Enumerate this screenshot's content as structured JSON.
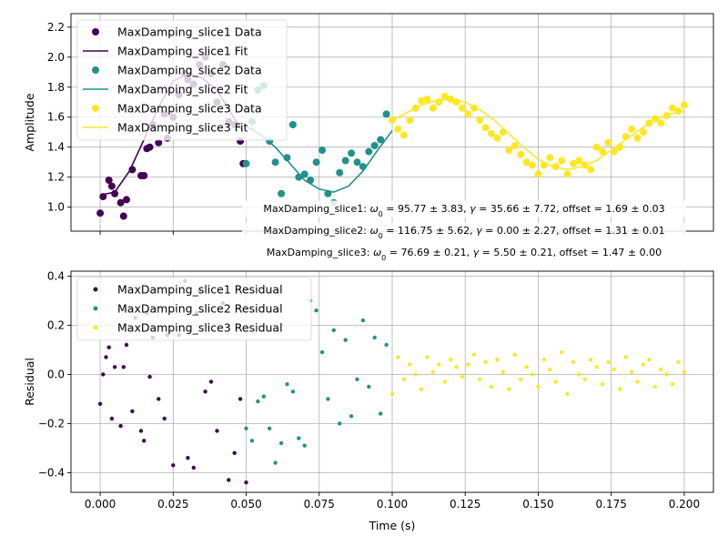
{
  "chart_data": [
    {
      "type": "scatter",
      "title": "",
      "xlabel": "",
      "ylabel": "Amplitude",
      "xlim": [
        -0.01,
        0.21
      ],
      "ylim": [
        0.84,
        2.29
      ],
      "xticks": [
        0.0,
        0.025,
        0.05,
        0.075,
        0.1,
        0.125,
        0.15,
        0.175,
        0.2
      ],
      "yticks": [
        1.0,
        1.2,
        1.4,
        1.6,
        1.8,
        2.0,
        2.2
      ],
      "ytick_labels": [
        "1.0",
        "1.2",
        "1.4",
        "1.6",
        "1.8",
        "2.0",
        "2.2"
      ],
      "grid": true,
      "legend_position": "top-left",
      "legend": [
        {
          "label": "MaxDamping_slice1 Data",
          "kind": "marker",
          "color": "#440154"
        },
        {
          "label": "MaxDamping_slice1 Fit",
          "kind": "line",
          "color": "#440154"
        },
        {
          "label": "MaxDamping_slice2 Data",
          "kind": "marker",
          "color": "#21918c"
        },
        {
          "label": "MaxDamping_slice2 Fit",
          "kind": "line",
          "color": "#21918c"
        },
        {
          "label": "MaxDamping_slice3 Data",
          "kind": "marker",
          "color": "#fde725"
        },
        {
          "label": "MaxDamping_slice3 Fit",
          "kind": "line",
          "color": "#fde725"
        }
      ],
      "annotations": [
        "MaxDamping_slice1: $\\omega_0 = 95.77 \\pm 3.83$, $\\gamma = 35.66 \\pm 7.72$, offset$ = 1.69 \\pm 0.03$",
        "MaxDamping_slice2: $\\omega_0 = 116.75 \\pm 5.62$, $\\gamma = 0.00 \\pm 2.27$, offset$ = 1.31 \\pm 0.01$",
        "MaxDamping_slice3: $\\omega_0 = 76.69 \\pm 0.21$, $\\gamma = 5.50 \\pm 0.21$, offset$ = 1.47 \\pm 0.00$"
      ],
      "annotations_display": [
        [
          "MaxDamping_slice1: ",
          "ω",
          "0",
          " = 95.77 ± 3.83, ",
          "γ",
          "",
          " = 35.66 ± 7.72, offset = 1.69 ± 0.03"
        ],
        [
          "MaxDamping_slice2: ",
          "ω",
          "0",
          " = 116.75 ± 5.62, ",
          "γ",
          "",
          " = 0.00 ± 2.27, offset = 1.31 ± 0.01"
        ],
        [
          "MaxDamping_slice3: ",
          "ω",
          "0",
          " = 76.69 ± 0.21, ",
          "γ",
          "",
          " = 5.50 ± 0.21, offset = 1.47 ± 0.00"
        ]
      ],
      "series": [
        {
          "name": "MaxDamping_slice1 Data",
          "kind": "scatter",
          "color": "#440154",
          "x": [
            0.0,
            0.001,
            0.003,
            0.004,
            0.005,
            0.007,
            0.008,
            0.009,
            0.011,
            0.014,
            0.015,
            0.016,
            0.017,
            0.018,
            0.02,
            0.022,
            0.023,
            0.025,
            0.027,
            0.029,
            0.03,
            0.032,
            0.034,
            0.036,
            0.038,
            0.04,
            0.042,
            0.044,
            0.046,
            0.048,
            0.049
          ],
          "y": [
            0.96,
            1.07,
            1.18,
            1.14,
            1.09,
            1.03,
            0.94,
            1.05,
            1.25,
            1.21,
            1.21,
            1.39,
            1.4,
            1.55,
            1.43,
            1.62,
            1.46,
            1.6,
            1.75,
            1.89,
            1.85,
            1.82,
            1.95,
            2.0,
            1.89,
            1.7,
            1.95,
            1.57,
            1.55,
            1.44,
            1.29
          ]
        },
        {
          "name": "MaxDamping_slice1 Fit",
          "kind": "line",
          "color": "#440154",
          "x": [
            0.0,
            0.005,
            0.01,
            0.015,
            0.02,
            0.025,
            0.03,
            0.035,
            0.04,
            0.045,
            0.049
          ],
          "y": [
            1.08,
            1.1,
            1.24,
            1.45,
            1.67,
            1.84,
            1.89,
            1.86,
            1.78,
            1.62,
            1.5
          ]
        },
        {
          "name": "MaxDamping_slice2 Data",
          "kind": "scatter",
          "color": "#21918c",
          "x": [
            0.05,
            0.052,
            0.054,
            0.056,
            0.058,
            0.06,
            0.062,
            0.064,
            0.066,
            0.068,
            0.07,
            0.072,
            0.074,
            0.076,
            0.078,
            0.08,
            0.082,
            0.084,
            0.086,
            0.088,
            0.09,
            0.092,
            0.094,
            0.096,
            0.098
          ],
          "y": [
            1.29,
            1.57,
            1.78,
            1.81,
            1.44,
            1.3,
            1.09,
            1.33,
            1.55,
            1.2,
            1.22,
            1.18,
            1.3,
            1.38,
            1.09,
            1.03,
            1.23,
            1.31,
            1.36,
            1.3,
            1.27,
            1.37,
            1.41,
            1.45,
            1.62
          ]
        },
        {
          "name": "MaxDamping_slice2 Fit",
          "kind": "line",
          "color": "#21918c",
          "x": [
            0.05,
            0.055,
            0.06,
            0.065,
            0.07,
            0.075,
            0.08,
            0.085,
            0.09,
            0.095,
            0.1
          ],
          "y": [
            1.54,
            1.48,
            1.4,
            1.29,
            1.18,
            1.12,
            1.1,
            1.14,
            1.24,
            1.38,
            1.51
          ]
        },
        {
          "name": "MaxDamping_slice3 Data",
          "kind": "scatter",
          "color": "#fde725",
          "x": [
            0.1,
            0.102,
            0.104,
            0.106,
            0.108,
            0.11,
            0.112,
            0.114,
            0.116,
            0.118,
            0.12,
            0.122,
            0.124,
            0.126,
            0.128,
            0.13,
            0.132,
            0.134,
            0.136,
            0.138,
            0.14,
            0.142,
            0.144,
            0.146,
            0.148,
            0.15,
            0.152,
            0.154,
            0.156,
            0.158,
            0.16,
            0.162,
            0.164,
            0.166,
            0.168,
            0.17,
            0.172,
            0.174,
            0.176,
            0.178,
            0.18,
            0.182,
            0.184,
            0.186,
            0.188,
            0.19,
            0.192,
            0.194,
            0.196,
            0.198,
            0.2
          ],
          "y": [
            1.58,
            1.52,
            1.48,
            1.58,
            1.66,
            1.71,
            1.72,
            1.66,
            1.7,
            1.74,
            1.72,
            1.7,
            1.66,
            1.62,
            1.66,
            1.58,
            1.53,
            1.49,
            1.46,
            1.5,
            1.38,
            1.41,
            1.35,
            1.3,
            1.28,
            1.22,
            1.28,
            1.33,
            1.27,
            1.31,
            1.22,
            1.29,
            1.31,
            1.28,
            1.25,
            1.4,
            1.37,
            1.43,
            1.37,
            1.4,
            1.47,
            1.52,
            1.46,
            1.5,
            1.56,
            1.59,
            1.56,
            1.61,
            1.66,
            1.64,
            1.68
          ]
        },
        {
          "name": "MaxDamping_slice3 Fit",
          "kind": "line",
          "color": "#fde725",
          "x": [
            0.1,
            0.105,
            0.11,
            0.115,
            0.12,
            0.125,
            0.13,
            0.135,
            0.14,
            0.145,
            0.15,
            0.155,
            0.16,
            0.165,
            0.17,
            0.175,
            0.18,
            0.185,
            0.19,
            0.195,
            0.2
          ],
          "y": [
            1.58,
            1.63,
            1.68,
            1.71,
            1.72,
            1.7,
            1.65,
            1.58,
            1.49,
            1.4,
            1.32,
            1.27,
            1.25,
            1.27,
            1.31,
            1.38,
            1.45,
            1.52,
            1.58,
            1.62,
            1.64
          ]
        }
      ]
    },
    {
      "type": "scatter",
      "title": "",
      "xlabel": "Time (s)",
      "ylabel": "Residual",
      "xlim": [
        -0.01,
        0.21
      ],
      "ylim": [
        -0.48,
        0.42
      ],
      "xticks": [
        0.0,
        0.025,
        0.05,
        0.075,
        0.1,
        0.125,
        0.15,
        0.175,
        0.2
      ],
      "xtick_labels": [
        "0.000",
        "0.025",
        "0.050",
        "0.075",
        "0.100",
        "0.125",
        "0.150",
        "0.175",
        "0.200"
      ],
      "yticks": [
        -0.4,
        -0.2,
        0.0,
        0.2,
        0.4
      ],
      "ytick_labels": [
        "−0.4",
        "−0.2",
        "0.0",
        "0.2",
        "0.4"
      ],
      "grid": true,
      "legend_position": "top-left",
      "legend": [
        {
          "label": "MaxDamping_slice1 Residual",
          "kind": "marker",
          "color": "#440154"
        },
        {
          "label": "MaxDamping_slice2 Residual",
          "kind": "marker",
          "color": "#21918c"
        },
        {
          "label": "MaxDamping_slice3 Residual",
          "kind": "marker",
          "color": "#fde725"
        }
      ],
      "series": [
        {
          "name": "MaxDamping_slice1 Residual",
          "kind": "scatter",
          "color": "#440154",
          "x": [
            0.0,
            0.001,
            0.002,
            0.003,
            0.004,
            0.005,
            0.007,
            0.008,
            0.009,
            0.011,
            0.012,
            0.014,
            0.015,
            0.016,
            0.017,
            0.018,
            0.02,
            0.022,
            0.023,
            0.025,
            0.027,
            0.029,
            0.03,
            0.032,
            0.033,
            0.034,
            0.036,
            0.038,
            0.04,
            0.042,
            0.044,
            0.046,
            0.048,
            0.05
          ],
          "y": [
            -0.12,
            0.0,
            0.07,
            0.11,
            -0.18,
            0.03,
            -0.21,
            0.03,
            0.12,
            -0.15,
            0.23,
            -0.23,
            -0.27,
            0.25,
            -0.01,
            0.15,
            -0.1,
            -0.18,
            0.16,
            -0.37,
            0.16,
            0.38,
            -0.34,
            -0.38,
            0.25,
            0.34,
            -0.07,
            -0.03,
            -0.23,
            0.29,
            -0.43,
            -0.32,
            -0.1,
            -0.44
          ]
        },
        {
          "name": "MaxDamping_slice2 Residual",
          "kind": "scatter",
          "color": "#21918c",
          "x": [
            0.05,
            0.052,
            0.054,
            0.056,
            0.058,
            0.06,
            0.062,
            0.064,
            0.066,
            0.068,
            0.07,
            0.072,
            0.074,
            0.076,
            0.078,
            0.08,
            0.082,
            0.084,
            0.086,
            0.088,
            0.09,
            0.092,
            0.094,
            0.096,
            0.098
          ],
          "y": [
            -0.22,
            -0.27,
            -0.11,
            -0.09,
            -0.22,
            -0.36,
            -0.28,
            -0.04,
            -0.07,
            -0.26,
            -0.29,
            0.3,
            0.26,
            0.09,
            -0.1,
            0.18,
            -0.2,
            0.14,
            -0.17,
            -0.02,
            0.22,
            -0.05,
            0.15,
            -0.16,
            0.12
          ]
        },
        {
          "name": "MaxDamping_slice3 Residual",
          "kind": "scatter",
          "color": "#fde725",
          "x": [
            0.1,
            0.102,
            0.104,
            0.106,
            0.108,
            0.11,
            0.112,
            0.114,
            0.116,
            0.118,
            0.12,
            0.122,
            0.124,
            0.126,
            0.128,
            0.13,
            0.132,
            0.134,
            0.136,
            0.138,
            0.14,
            0.142,
            0.144,
            0.146,
            0.148,
            0.15,
            0.152,
            0.154,
            0.156,
            0.158,
            0.16,
            0.162,
            0.164,
            0.166,
            0.168,
            0.17,
            0.172,
            0.174,
            0.176,
            0.178,
            0.18,
            0.182,
            0.184,
            0.186,
            0.188,
            0.19,
            0.192,
            0.194,
            0.196,
            0.198,
            0.2
          ],
          "y": [
            -0.08,
            0.07,
            -0.02,
            0.04,
            0.0,
            -0.06,
            0.07,
            0.01,
            0.04,
            -0.03,
            0.06,
            0.03,
            -0.01,
            0.04,
            0.08,
            -0.02,
            0.05,
            -0.05,
            0.06,
            0.01,
            -0.06,
            0.08,
            -0.02,
            0.03,
            0.0,
            -0.05,
            0.06,
            0.02,
            -0.03,
            0.09,
            -0.08,
            0.05,
            0.0,
            -0.02,
            0.06,
            0.03,
            -0.04,
            0.05,
            0.02,
            -0.06,
            0.07,
            0.01,
            -0.03,
            0.04,
            0.06,
            -0.05,
            0.02,
            0.0,
            -0.04,
            0.05,
            0.01
          ]
        }
      ]
    }
  ]
}
